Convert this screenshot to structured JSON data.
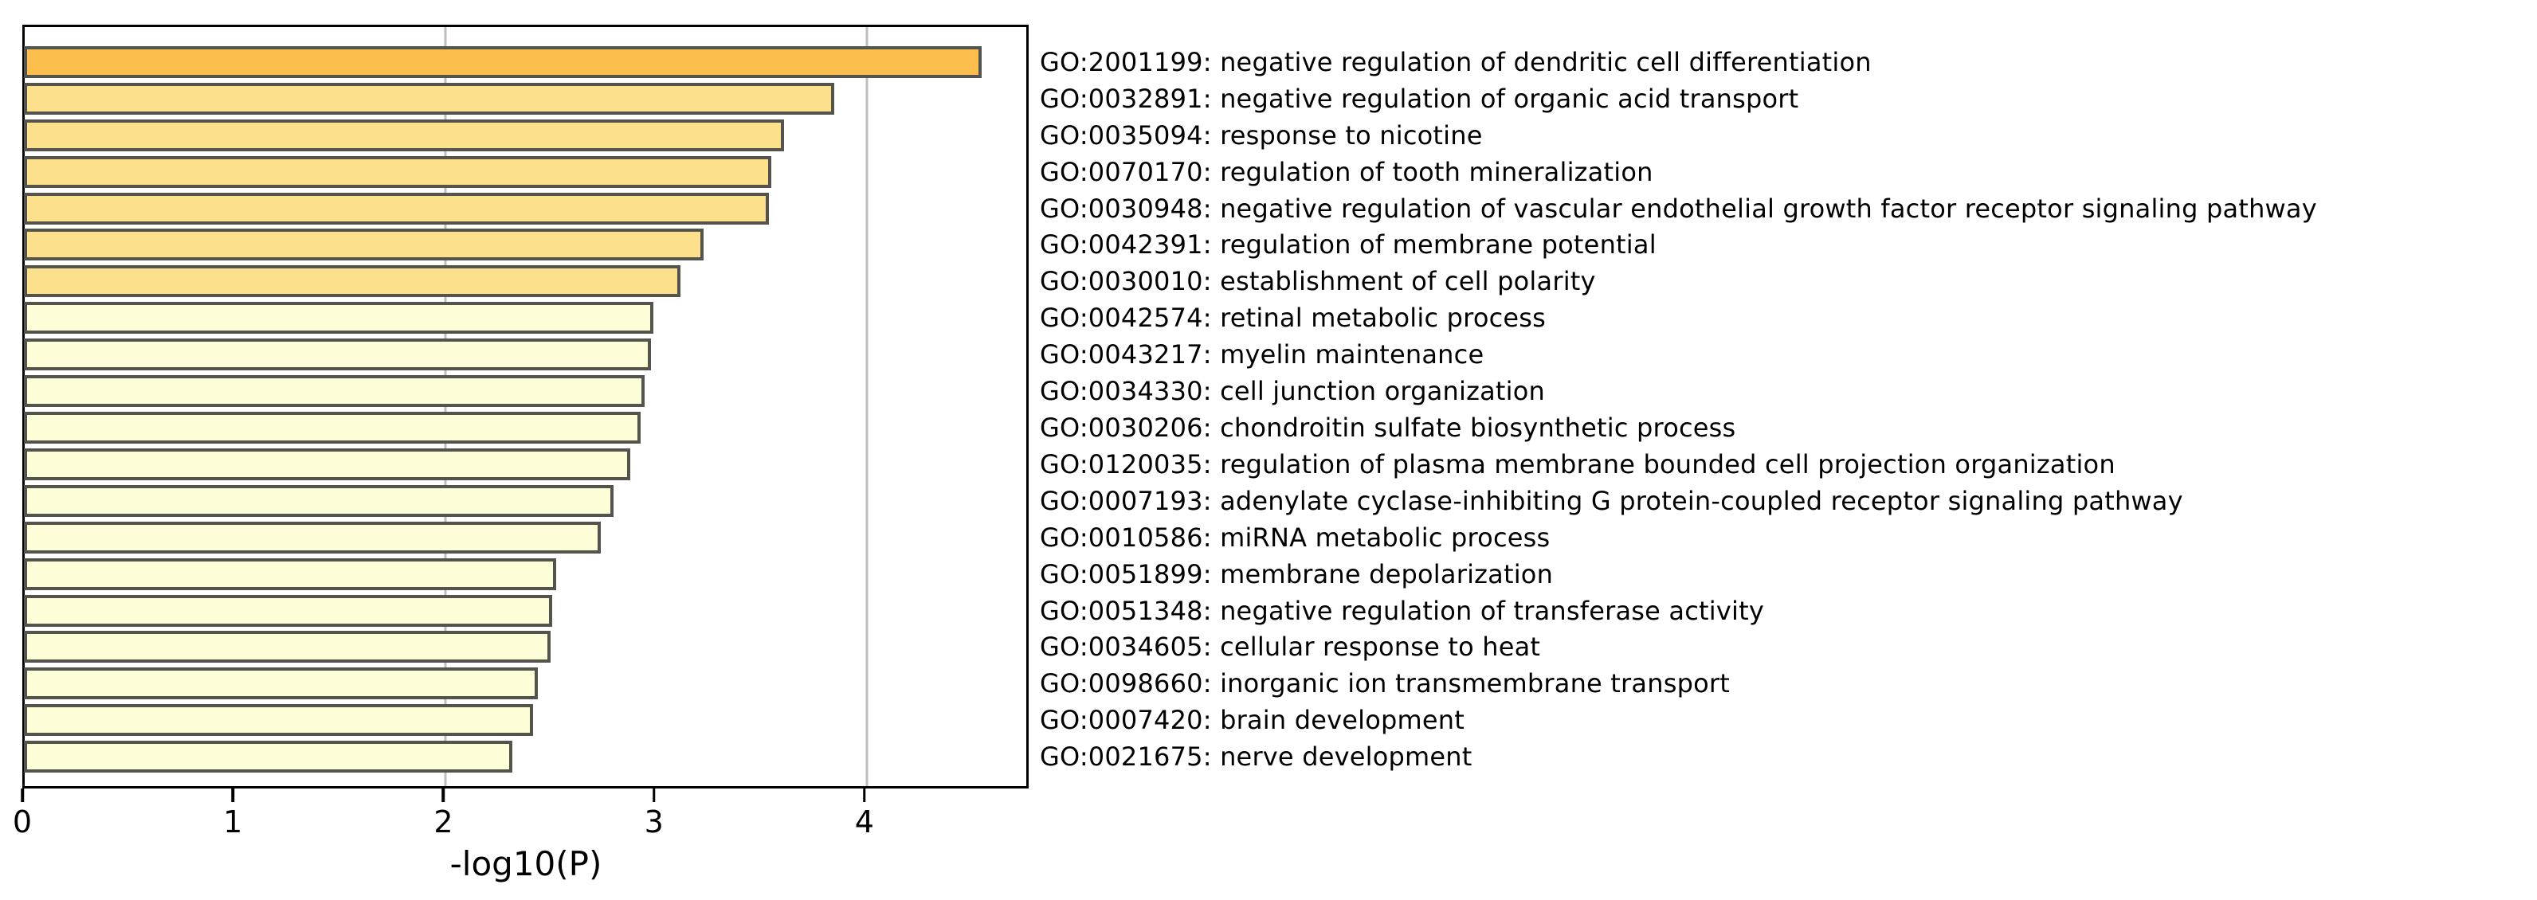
{
  "chart_data": {
    "type": "bar",
    "orientation": "horizontal",
    "title": "",
    "xlabel": "-log10(P)",
    "ylabel": "",
    "x_ticks": [
      "0",
      "1",
      "2",
      "3",
      "4"
    ],
    "x_tick_values": [
      0,
      1,
      2,
      3,
      4
    ],
    "xlim": [
      0,
      4.78
    ],
    "gridlines_at": [
      2,
      4
    ],
    "grid": "vertical-only",
    "legend_position": "none",
    "bars": [
      {
        "label": "GO:2001199: negative regulation of dendritic cell differentiation",
        "value": 4.55,
        "color": "#FCBF4D"
      },
      {
        "label": "GO:0032891: negative regulation of organic acid transport",
        "value": 3.85,
        "color": "#FDE08C"
      },
      {
        "label": "GO:0035094: response to nicotine",
        "value": 3.61,
        "color": "#FDE08C"
      },
      {
        "label": "GO:0070170: regulation of tooth mineralization",
        "value": 3.55,
        "color": "#FDE08C"
      },
      {
        "label": "GO:0030948: negative regulation of vascular endothelial growth factor receptor signaling pathway",
        "value": 3.54,
        "color": "#FDE08C"
      },
      {
        "label": "GO:0042391: regulation of membrane potential",
        "value": 3.23,
        "color": "#FDE08C"
      },
      {
        "label": "GO:0030010: establishment of cell polarity",
        "value": 3.12,
        "color": "#FDE08C"
      },
      {
        "label": "GO:0042574: retinal metabolic process",
        "value": 2.99,
        "color": "#FDFDD7"
      },
      {
        "label": "GO:0043217: myelin maintenance",
        "value": 2.98,
        "color": "#FDFDD7"
      },
      {
        "label": "GO:0034330: cell junction organization",
        "value": 2.95,
        "color": "#FDFDD7"
      },
      {
        "label": "GO:0030206: chondroitin sulfate biosynthetic process",
        "value": 2.93,
        "color": "#FDFDD7"
      },
      {
        "label": "GO:0120035: regulation of plasma membrane bounded cell projection organization",
        "value": 2.88,
        "color": "#FDFDD7"
      },
      {
        "label": "GO:0007193: adenylate cyclase-inhibiting G protein-coupled receptor signaling pathway",
        "value": 2.8,
        "color": "#FDFDD7"
      },
      {
        "label": "GO:0010586: miRNA metabolic process",
        "value": 2.74,
        "color": "#FDFDD7"
      },
      {
        "label": "GO:0051899: membrane depolarization",
        "value": 2.53,
        "color": "#FDFDD7"
      },
      {
        "label": "GO:0051348: negative regulation of transferase activity",
        "value": 2.51,
        "color": "#FDFDD7"
      },
      {
        "label": "GO:0034605: cellular response to heat",
        "value": 2.5,
        "color": "#FDFDD7"
      },
      {
        "label": "GO:0098660: inorganic ion transmembrane transport",
        "value": 2.44,
        "color": "#FDFDD7"
      },
      {
        "label": "GO:0007420: brain development",
        "value": 2.42,
        "color": "#FDFDD7"
      },
      {
        "label": "GO:0021675: nerve development",
        "value": 2.32,
        "color": "#FDFDD7"
      }
    ]
  },
  "colors": {
    "background": "#FFFFFF",
    "axis": "#000000",
    "grid": "#BEBEBE",
    "bar_border": "#55544C",
    "bin_high_significance": "#FCBF4D",
    "bin_mid_significance": "#FDE08C",
    "bin_low_significance": "#FDFDD7"
  }
}
